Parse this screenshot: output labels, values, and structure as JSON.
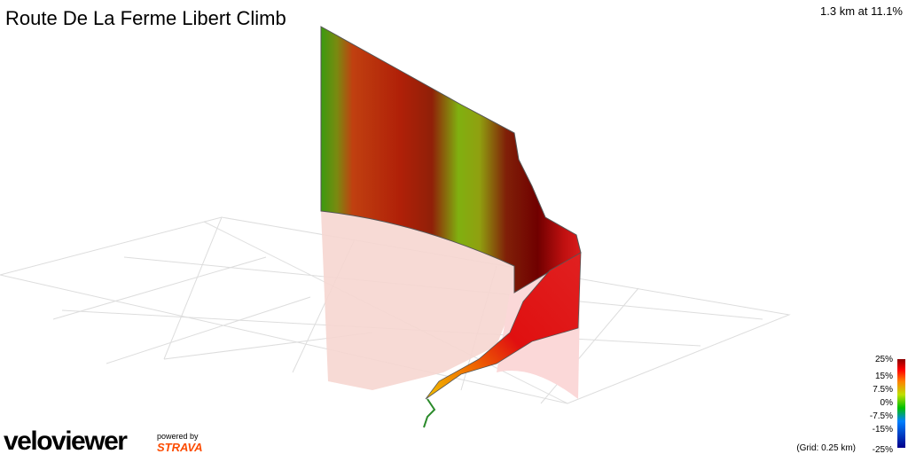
{
  "header": {
    "title": "Route De La Ferme Libert Climb",
    "stats": "1.3 km at 11.1%"
  },
  "legend": {
    "labels": [
      "25%",
      "15%",
      "7.5%",
      "0%",
      "-7.5%",
      "-15%",
      "-25%"
    ],
    "grid_note": "(Grid: 0.25 km)"
  },
  "branding": {
    "logo": "veloviewer",
    "powered_by": "powered by",
    "partner": "STRAVA"
  }
}
